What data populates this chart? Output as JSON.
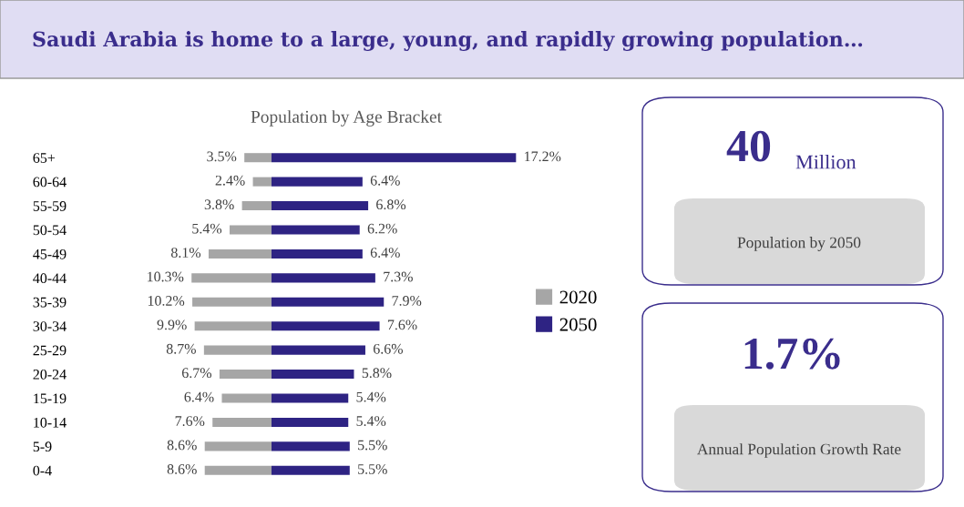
{
  "chart_data": [
    {
      "type": "other",
      "title": "Saudi Arabia is home to a large, young, and rapidly growing population…"
    },
    {
      "type": "bar",
      "orientation": "horizontal",
      "title": "Population by Age Bracket",
      "categories": [
        "65+",
        "60-64",
        "55-59",
        "50-54",
        "45-49",
        "40-44",
        "35-39",
        "30-34",
        "25-29",
        "20-24",
        "15-19",
        "10-14",
        "5-9",
        "0-4"
      ],
      "series": [
        {
          "name": "2020",
          "color": "#a6a6a6",
          "values": [
            3.5,
            2.4,
            3.8,
            5.4,
            8.1,
            10.3,
            10.2,
            9.9,
            8.7,
            6.7,
            6.4,
            7.6,
            8.6,
            8.6
          ],
          "value_labels": [
            "3.5%",
            "2.4%",
            "3.8%",
            "5.4%",
            "8.1%",
            "10.3%",
            "10.2%",
            "9.9%",
            "8.7%",
            "6.7%",
            "6.4%",
            "7.6%",
            "8.6%",
            "8.6%"
          ]
        }
      ],
      "tick_labels": "y",
      "legend": "right",
      "grid": false
    },
    {
      "type": "bar",
      "orientation": "horizontal",
      "series": [
        {
          "name": "2050",
          "color": "#2e2383",
          "values": [
            17.2,
            6.4,
            6.8,
            6.2,
            6.4,
            7.3,
            7.9,
            7.6,
            6.6,
            5.8,
            5.4,
            5.4,
            5.5,
            5.5
          ],
          "value_labels": [
            "17.2%",
            "6.4%",
            "6.8%",
            "6.2%",
            "6.4%",
            "7.3%",
            "7.9%",
            "7.6%",
            "6.6%",
            "5.8%",
            "5.4%",
            "5.4%",
            "5.5%",
            "5.5%"
          ]
        }
      ],
      "tick_labels": false,
      "legend": "right",
      "grid": false
    },
    {
      "type": "other",
      "annotations": [
        "40",
        "Million",
        "Population by 2050",
        "1.7%",
        "Annual Population Growth Rate"
      ]
    }
  ]
}
